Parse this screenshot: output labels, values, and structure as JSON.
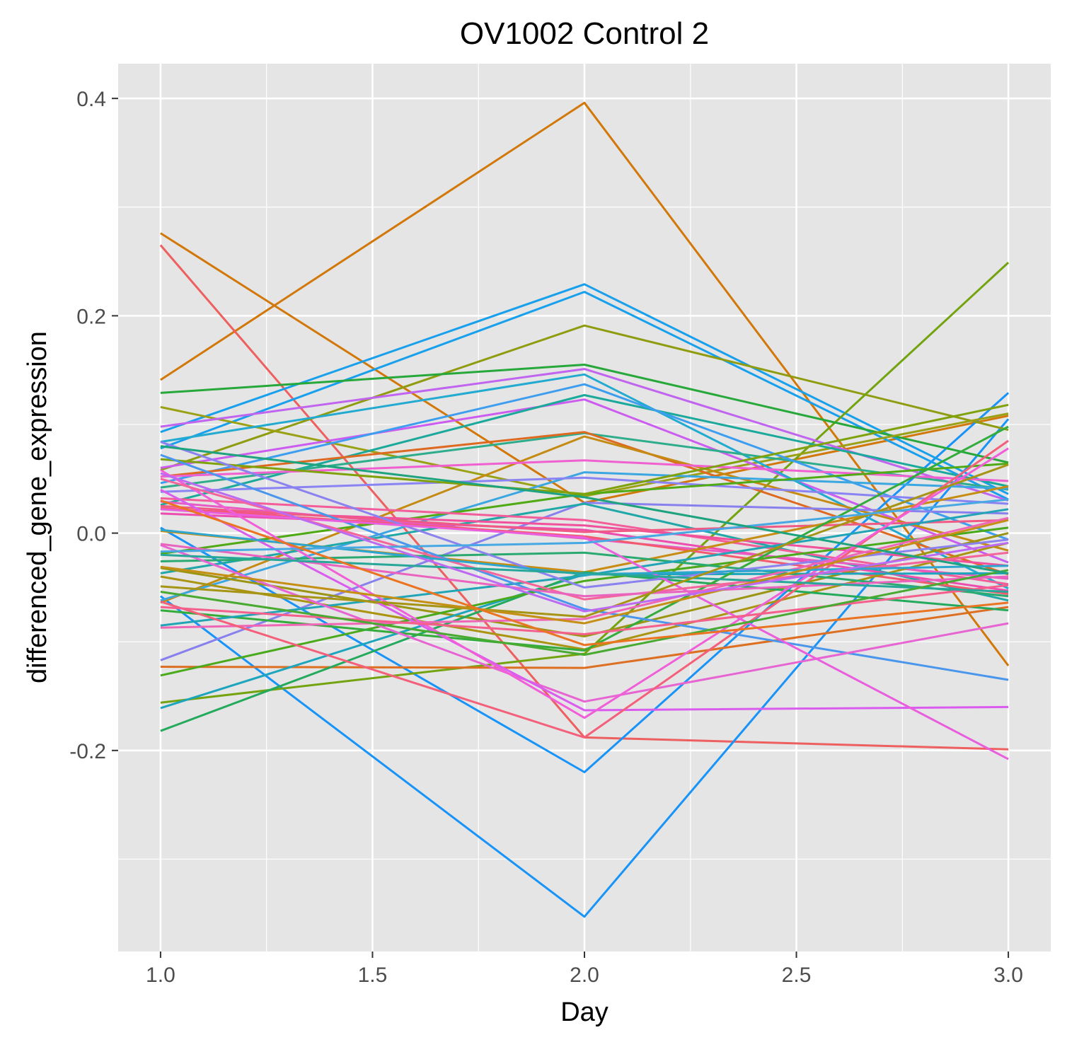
{
  "chart_data": {
    "type": "line",
    "title": "OV1002 Control 2",
    "xlabel": "Day",
    "ylabel": "differenced_gene_expression",
    "x": [
      1,
      2,
      3
    ],
    "xlim": [
      0.9,
      3.1
    ],
    "ylim": [
      -0.385,
      0.432
    ],
    "x_ticks": [
      1.0,
      1.5,
      2.0,
      2.5,
      3.0
    ],
    "x_tick_labels": [
      "1.0",
      "1.5",
      "2.0",
      "2.5",
      "3.0"
    ],
    "y_ticks": [
      -0.2,
      0.0,
      0.2,
      0.4
    ],
    "y_tick_labels": [
      "-0.2",
      "0.0",
      "0.2",
      "0.4"
    ],
    "grid": true,
    "legend": "none",
    "background": "#e5e5e5",
    "series": [
      {
        "color": "#d2780a",
        "values": [
          0.141,
          0.396,
          -0.122
        ]
      },
      {
        "color": "#d2780a",
        "values": [
          0.276,
          0.028,
          0.108
        ]
      },
      {
        "color": "#ee5f5f",
        "values": [
          0.265,
          -0.188,
          -0.199
        ]
      },
      {
        "color": "#1893f8",
        "values": [
          0.005,
          -0.22,
          0.129
        ]
      },
      {
        "color": "#1893f8",
        "values": [
          -0.058,
          -0.353,
          0.105
        ]
      },
      {
        "color": "#19a0ec",
        "values": [
          0.093,
          0.229,
          0.036
        ]
      },
      {
        "color": "#19a0ec",
        "values": [
          0.078,
          0.222,
          0.031
        ]
      },
      {
        "color": "#8f9c10",
        "values": [
          0.058,
          0.191,
          0.095
        ]
      },
      {
        "color": "#73a30f",
        "values": [
          -0.156,
          -0.111,
          0.249
        ]
      },
      {
        "color": "#27a83a",
        "values": [
          0.129,
          0.155,
          0.065
        ]
      },
      {
        "color": "#9aa114",
        "values": [
          0.116,
          0.034,
          0.11
        ]
      },
      {
        "color": "#c164f0",
        "values": [
          0.098,
          0.151,
          0.03
        ]
      },
      {
        "color": "#cc5cf0",
        "values": [
          0.06,
          0.123,
          -0.027
        ]
      },
      {
        "color": "#22aad0",
        "values": [
          0.084,
          0.146,
          -0.051
        ]
      },
      {
        "color": "#1aa99b",
        "values": [
          0.026,
          0.127,
          0.043
        ]
      },
      {
        "color": "#2ead8c",
        "values": [
          0.042,
          0.092,
          0.04
        ]
      },
      {
        "color": "#3d9ef0",
        "values": [
          0.046,
          0.137,
          -0.006
        ]
      },
      {
        "color": "#dd6a20",
        "values": [
          0.052,
          0.093,
          -0.038
        ]
      },
      {
        "color": "#c58a12",
        "values": [
          -0.064,
          0.089,
          -0.016
        ]
      },
      {
        "color": "#f060d0",
        "values": [
          0.052,
          0.067,
          0.048
        ]
      },
      {
        "color": "#3aa7e0",
        "values": [
          -0.062,
          0.056,
          0.041
        ]
      },
      {
        "color": "#8a83f4",
        "values": [
          0.038,
          0.051,
          0.027
        ]
      },
      {
        "color": "#8880ee",
        "values": [
          -0.117,
          0.028,
          0.018
        ]
      },
      {
        "color": "#4faa15",
        "values": [
          -0.019,
          0.036,
          0.064
        ]
      },
      {
        "color": "#7fa20c",
        "values": [
          0.068,
          0.036,
          0.118
        ]
      },
      {
        "color": "#20a8a8",
        "values": [
          -0.037,
          0.027,
          -0.062
        ]
      },
      {
        "color": "#f25d9a",
        "values": [
          0.032,
          0.012,
          -0.047
        ]
      },
      {
        "color": "#f0509c",
        "values": [
          0.022,
          0.007,
          -0.03
        ]
      },
      {
        "color": "#ee4db0",
        "values": [
          0.018,
          0.003,
          -0.053
        ]
      },
      {
        "color": "#e85bc2",
        "values": [
          0.029,
          -0.005,
          -0.042
        ]
      },
      {
        "color": "#ef5b84",
        "values": [
          0.025,
          0.001,
          0.012
        ]
      },
      {
        "color": "#f45a6e",
        "values": [
          0.023,
          -0.003,
          -0.056
        ]
      },
      {
        "color": "#c78d12",
        "values": [
          0.002,
          -0.036,
          0.043
        ]
      },
      {
        "color": "#9b9514",
        "values": [
          -0.032,
          -0.095,
          0.0
        ]
      },
      {
        "color": "#aa9412",
        "values": [
          -0.04,
          -0.107,
          -0.009
        ]
      },
      {
        "color": "#dd6f22",
        "values": [
          -0.123,
          -0.124,
          -0.068
        ]
      },
      {
        "color": "#1ca5bd",
        "values": [
          -0.161,
          -0.038,
          -0.037
        ]
      },
      {
        "color": "#24aa5d",
        "values": [
          -0.182,
          -0.036,
          -0.071
        ]
      },
      {
        "color": "#4aaa1c",
        "values": [
          -0.131,
          -0.044,
          0.005
        ]
      },
      {
        "color": "#33ac3c",
        "values": [
          -0.071,
          -0.108,
          0.098
        ]
      },
      {
        "color": "#2aaa70",
        "values": [
          -0.026,
          -0.018,
          -0.058
        ]
      },
      {
        "color": "#21a5b6",
        "values": [
          -0.085,
          -0.039,
          0.022
        ]
      },
      {
        "color": "#4a96ec",
        "values": [
          0.072,
          -0.07,
          -0.135
        ]
      },
      {
        "color": "#8b82f0",
        "values": [
          0.084,
          -0.05,
          -0.006
        ]
      },
      {
        "color": "#e765d2",
        "values": [
          -0.011,
          -0.155,
          -0.083
        ]
      },
      {
        "color": "#d95cef",
        "values": [
          0.04,
          -0.163,
          -0.16
        ]
      },
      {
        "color": "#f066b6",
        "values": [
          -0.087,
          -0.079,
          0.014
        ]
      },
      {
        "color": "#f45f7a",
        "values": [
          -0.063,
          -0.188,
          0.085
        ]
      },
      {
        "color": "#f05fd8",
        "values": [
          0.058,
          -0.17,
          0.078
        ]
      },
      {
        "color": "#e95edd",
        "values": [
          0.022,
          -0.004,
          -0.208
        ]
      },
      {
        "color": "#f45f8c",
        "values": [
          -0.068,
          -0.093,
          -0.048
        ]
      },
      {
        "color": "#f4659a",
        "values": [
          0.05,
          -0.061,
          -0.018
        ]
      },
      {
        "color": "#ea63bf",
        "values": [
          -0.01,
          -0.058,
          -0.04
        ]
      },
      {
        "color": "#2ca6cf",
        "values": [
          0.003,
          -0.038,
          -0.03
        ]
      },
      {
        "color": "#26a79a",
        "values": [
          -0.02,
          -0.037,
          -0.054
        ]
      },
      {
        "color": "#48aa30",
        "values": [
          -0.054,
          -0.112,
          -0.034
        ]
      },
      {
        "color": "#a69414",
        "values": [
          -0.049,
          -0.077,
          0.063
        ]
      },
      {
        "color": "#c48f14",
        "values": [
          -0.031,
          -0.083,
          0.012
        ]
      },
      {
        "color": "#47a8e4",
        "values": [
          -0.017,
          -0.009,
          0.031
        ]
      },
      {
        "color": "#bc6af2",
        "values": [
          0.055,
          -0.072,
          -0.009
        ]
      },
      {
        "color": "#1ea37f",
        "values": [
          0.08,
          0.033,
          -0.037
        ]
      },
      {
        "color": "#ea7421",
        "values": [
          0.03,
          -0.103,
          -0.064
        ]
      }
    ]
  }
}
